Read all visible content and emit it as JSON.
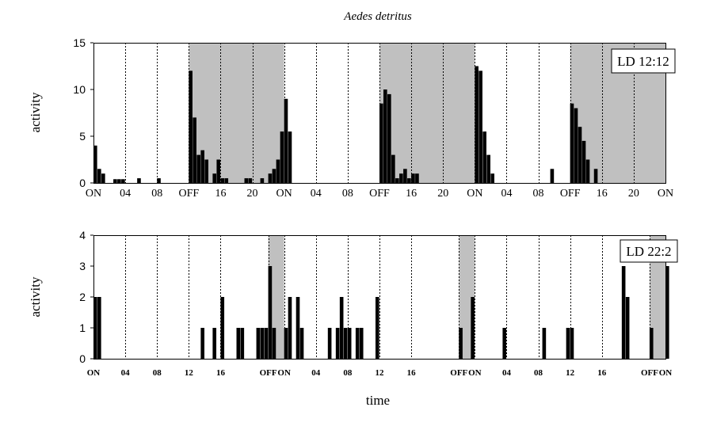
{
  "chart_data": [
    {
      "type": "bar",
      "title": "Aedes detritus",
      "ylabel": "activity",
      "xlabel": "",
      "ylim": [
        0,
        15
      ],
      "yticks": [
        0,
        5,
        10,
        15
      ],
      "x_unit": "hours",
      "xlim": [
        0,
        72
      ],
      "annotation": "LD 12:12",
      "shading": "gray = lights off",
      "dark_periods": [
        [
          12,
          24
        ],
        [
          36,
          48
        ],
        [
          60,
          72
        ]
      ],
      "xticks": [
        {
          "x": 0,
          "label": "ON"
        },
        {
          "x": 4,
          "label": "04"
        },
        {
          "x": 8,
          "label": "08"
        },
        {
          "x": 12,
          "label": "OFF"
        },
        {
          "x": 16,
          "label": "16"
        },
        {
          "x": 20,
          "label": "20"
        },
        {
          "x": 24,
          "label": "ON"
        },
        {
          "x": 28,
          "label": "04"
        },
        {
          "x": 32,
          "label": "08"
        },
        {
          "x": 36,
          "label": "OFF"
        },
        {
          "x": 40,
          "label": "16"
        },
        {
          "x": 44,
          "label": "20"
        },
        {
          "x": 48,
          "label": "ON"
        },
        {
          "x": 52,
          "label": "04"
        },
        {
          "x": 56,
          "label": "08"
        },
        {
          "x": 60,
          "label": "OFF"
        },
        {
          "x": 64,
          "label": "16"
        },
        {
          "x": 68,
          "label": "20"
        },
        {
          "x": 72,
          "label": "ON"
        }
      ],
      "bar_width": 0.5,
      "bars": [
        [
          0.0,
          4.0
        ],
        [
          0.5,
          1.5
        ],
        [
          1.0,
          1.0
        ],
        [
          2.5,
          0.4
        ],
        [
          3.0,
          0.4
        ],
        [
          3.5,
          0.4
        ],
        [
          5.5,
          0.5
        ],
        [
          8.0,
          0.5
        ],
        [
          12.0,
          12.0
        ],
        [
          12.5,
          7.0
        ],
        [
          13.0,
          3.0
        ],
        [
          13.5,
          3.5
        ],
        [
          14.0,
          2.5
        ],
        [
          15.0,
          1.0
        ],
        [
          15.5,
          2.5
        ],
        [
          16.0,
          0.5
        ],
        [
          16.5,
          0.5
        ],
        [
          19.0,
          0.5
        ],
        [
          19.5,
          0.5
        ],
        [
          21.0,
          0.5
        ],
        [
          22.0,
          1.0
        ],
        [
          22.5,
          1.5
        ],
        [
          23.0,
          2.5
        ],
        [
          23.5,
          5.5
        ],
        [
          24.0,
          9.0
        ],
        [
          24.5,
          5.5
        ],
        [
          36.0,
          8.5
        ],
        [
          36.5,
          10.0
        ],
        [
          37.0,
          9.5
        ],
        [
          37.5,
          3.0
        ],
        [
          38.0,
          0.5
        ],
        [
          38.5,
          1.0
        ],
        [
          39.0,
          1.5
        ],
        [
          39.5,
          0.5
        ],
        [
          40.0,
          1.0
        ],
        [
          40.5,
          1.0
        ],
        [
          48.0,
          12.5
        ],
        [
          48.5,
          12.0
        ],
        [
          49.0,
          5.5
        ],
        [
          49.5,
          3.0
        ],
        [
          50.0,
          1.0
        ],
        [
          57.5,
          1.5
        ],
        [
          60.0,
          8.5
        ],
        [
          60.5,
          8.0
        ],
        [
          61.0,
          6.0
        ],
        [
          61.5,
          4.5
        ],
        [
          62.0,
          2.5
        ],
        [
          63.0,
          1.5
        ]
      ]
    },
    {
      "type": "bar",
      "ylabel": "activity",
      "xlabel": "time",
      "ylim": [
        0,
        4
      ],
      "yticks": [
        0,
        1,
        2,
        3,
        4
      ],
      "x_unit": "hours",
      "xlim": [
        0,
        72
      ],
      "annotation": "LD 22:2",
      "shading": "gray = lights off",
      "dark_periods": [
        [
          22,
          24
        ],
        [
          46,
          48
        ],
        [
          70,
          72
        ]
      ],
      "xticks": [
        {
          "x": 0,
          "label": "ON"
        },
        {
          "x": 4,
          "label": "04"
        },
        {
          "x": 8,
          "label": "08"
        },
        {
          "x": 12,
          "label": "12"
        },
        {
          "x": 16,
          "label": "16"
        },
        {
          "x": 22,
          "label": "OFF"
        },
        {
          "x": 24,
          "label": "ON"
        },
        {
          "x": 28,
          "label": "04"
        },
        {
          "x": 32,
          "label": "08"
        },
        {
          "x": 36,
          "label": "12"
        },
        {
          "x": 40,
          "label": "16"
        },
        {
          "x": 46,
          "label": "OFF"
        },
        {
          "x": 48,
          "label": "ON"
        },
        {
          "x": 52,
          "label": "04"
        },
        {
          "x": 56,
          "label": "08"
        },
        {
          "x": 60,
          "label": "12"
        },
        {
          "x": 64,
          "label": "16"
        },
        {
          "x": 70,
          "label": "OFF"
        },
        {
          "x": 72,
          "label": "ON"
        }
      ],
      "bar_width": 0.5,
      "bars": [
        [
          0.0,
          2
        ],
        [
          0.5,
          2
        ],
        [
          13.5,
          1
        ],
        [
          15.0,
          1
        ],
        [
          16.0,
          2
        ],
        [
          18.0,
          1
        ],
        [
          18.5,
          1
        ],
        [
          20.5,
          1
        ],
        [
          21.0,
          1
        ],
        [
          21.5,
          1
        ],
        [
          22.0,
          3
        ],
        [
          22.5,
          1
        ],
        [
          24.0,
          1
        ],
        [
          24.5,
          2
        ],
        [
          25.5,
          2
        ],
        [
          26.0,
          1
        ],
        [
          29.5,
          1
        ],
        [
          30.5,
          1
        ],
        [
          31.0,
          2
        ],
        [
          31.5,
          1
        ],
        [
          32.0,
          1
        ],
        [
          33.0,
          1
        ],
        [
          33.5,
          1
        ],
        [
          35.5,
          2
        ],
        [
          46.0,
          1
        ],
        [
          47.5,
          2
        ],
        [
          51.5,
          1
        ],
        [
          56.5,
          1
        ],
        [
          59.5,
          1
        ],
        [
          60.0,
          1
        ],
        [
          66.5,
          3
        ],
        [
          67.0,
          2
        ],
        [
          70.0,
          1
        ],
        [
          72.0,
          3
        ]
      ]
    }
  ]
}
